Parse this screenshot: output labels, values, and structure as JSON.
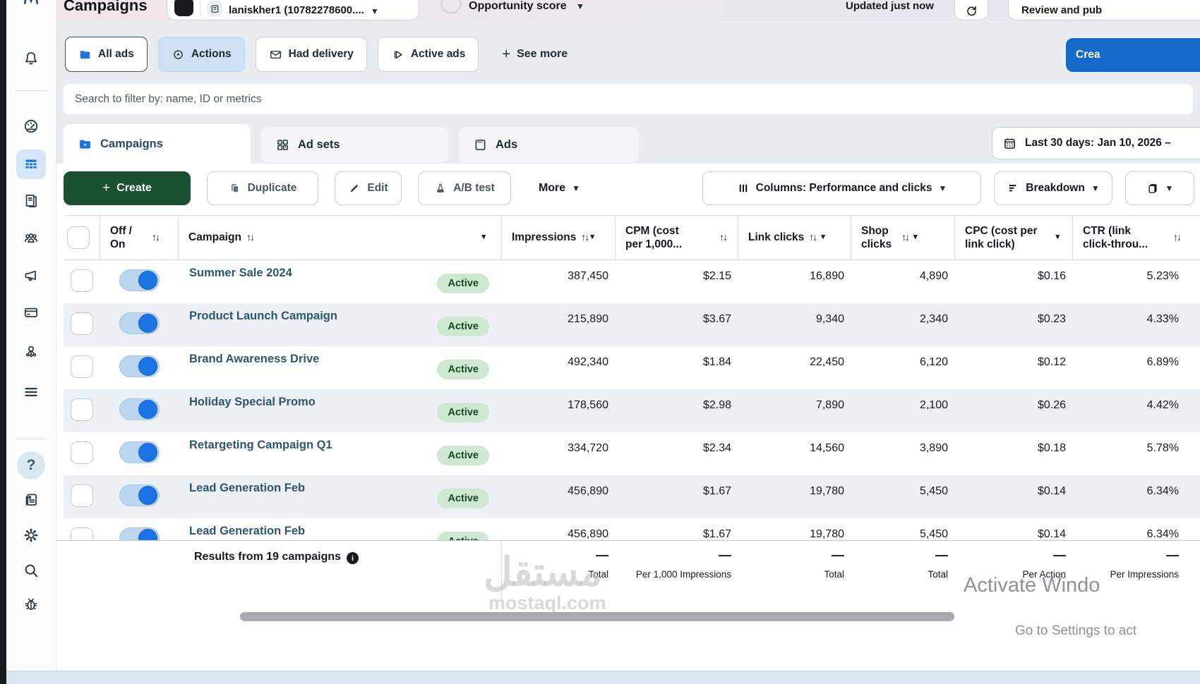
{
  "topbar": {
    "title": "Campaigns",
    "account_name": "laniskher1 (10782278600....",
    "opportunity_label": "Opportunity score",
    "updated_label": "Updated just now",
    "review_button_label": "Review and pub"
  },
  "filter_row": {
    "chips": [
      {
        "label": "All ads",
        "icon": "folder-icon"
      },
      {
        "label": "Actions",
        "icon": "pointer-circle-icon"
      },
      {
        "label": "Had delivery",
        "icon": "envelope-icon"
      },
      {
        "label": "Active ads",
        "icon": "play-flag-icon"
      },
      {
        "label": "See more",
        "icon": "plus-icon"
      }
    ],
    "create_report_label": "Crea"
  },
  "search": {
    "placeholder": "Search to filter by: name, ID or metrics"
  },
  "tabs": [
    {
      "label": "Campaigns",
      "icon": "folder-icon",
      "active": true
    },
    {
      "label": "Ad sets",
      "icon": "grid-icon",
      "active": false
    },
    {
      "label": "Ads",
      "icon": "frame-icon",
      "active": false
    }
  ],
  "date_range_label": "Last 30 days: Jan 10, 2026 –",
  "toolbar": {
    "create_label": "Create",
    "duplicate_label": "Duplicate",
    "edit_label": "Edit",
    "ab_test_label": "A/B test",
    "more_label": "More",
    "columns_label": "Columns: Performance and clicks",
    "breakdown_label": "Breakdown"
  },
  "glyphs": {
    "sort": "↑↓",
    "caret": "▾",
    "caret_down": "▼",
    "plus": "+",
    "dash": "—",
    "refresh": "↻",
    "help": "?"
  },
  "table": {
    "columns": [
      {
        "label": "Off / On"
      },
      {
        "label": "Campaign"
      },
      {
        "label": "Impressions"
      },
      {
        "label": "CPM (cost per 1,000..."
      },
      {
        "label": "Link clicks"
      },
      {
        "label": "Shop clicks"
      },
      {
        "label": "CPC (cost per link click)"
      },
      {
        "label": "CTR (link click-throu..."
      }
    ],
    "rows": [
      {
        "name": "Summer Sale 2024",
        "status": "Active",
        "impressions": "387,450",
        "cpm": "$2.15",
        "link_clicks": "16,890",
        "shop_clicks": "4,890",
        "cpc": "$0.16",
        "ctr": "5.23%"
      },
      {
        "name": "Product Launch Campaign",
        "status": "Active",
        "impressions": "215,890",
        "cpm": "$3.67",
        "link_clicks": "9,340",
        "shop_clicks": "2,340",
        "cpc": "$0.23",
        "ctr": "4.33%"
      },
      {
        "name": "Brand Awareness Drive",
        "status": "Active",
        "impressions": "492,340",
        "cpm": "$1.84",
        "link_clicks": "22,450",
        "shop_clicks": "6,120",
        "cpc": "$0.12",
        "ctr": "6.89%"
      },
      {
        "name": "Holiday Special Promo",
        "status": "Active",
        "impressions": "178,560",
        "cpm": "$2.98",
        "link_clicks": "7,890",
        "shop_clicks": "2,100",
        "cpc": "$0.26",
        "ctr": "4.42%"
      },
      {
        "name": "Retargeting Campaign Q1",
        "status": "Active",
        "impressions": "334,720",
        "cpm": "$2.34",
        "link_clicks": "14,560",
        "shop_clicks": "3,890",
        "cpc": "$0.18",
        "ctr": "5.78%"
      },
      {
        "name": "Lead Generation Feb",
        "status": "Active",
        "impressions": "456,890",
        "cpm": "$1.67",
        "link_clicks": "19,780",
        "shop_clicks": "5,450",
        "cpc": "$0.14",
        "ctr": "6.34%"
      },
      {
        "name": "Lead Generation Feb",
        "status": "Active",
        "impressions": "456,890",
        "cpm": "$1.67",
        "link_clicks": "19,780",
        "shop_clicks": "5,450",
        "cpc": "$0.14",
        "ctr": "6.34%"
      }
    ],
    "footer": {
      "results_label": "Results from 19 campaigns",
      "info_glyph": "i",
      "cells": [
        {
          "value": "—",
          "label": "Total"
        },
        {
          "value": "—",
          "label": "Per 1,000 Impressions"
        },
        {
          "value": "—",
          "label": "Total"
        },
        {
          "value": "—",
          "label": "Total"
        },
        {
          "value": "—",
          "label": "Per Action"
        },
        {
          "value": "—",
          "label": "Per Impressions"
        }
      ]
    }
  },
  "watermark": {
    "arabic": "مستقل",
    "domain": "mostaql.com"
  },
  "activate": {
    "line1": "Activate Windo",
    "line2": "Go to Settings to act"
  },
  "colors": {
    "accent_blue": "#1b74e4",
    "create_green": "#1a5130",
    "badge_green": "#cfe8d2",
    "row_alt": "#edf0f4",
    "report_blue": "#1569c8"
  }
}
